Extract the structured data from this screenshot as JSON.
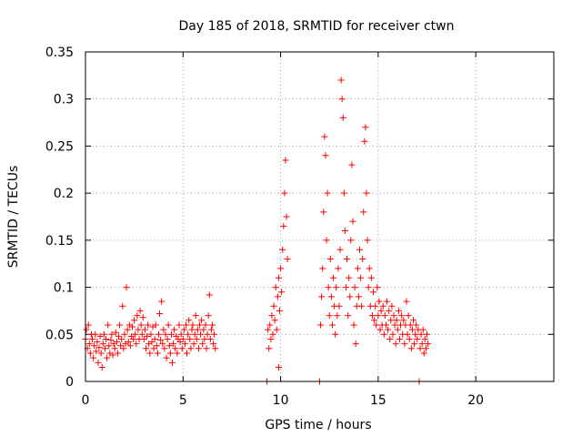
{
  "chart_data": {
    "type": "scatter",
    "title": "Day 185 of 2018, SRMTID for receiver ctwn",
    "xlabel": "GPS time / hours",
    "ylabel": "SRMTID / TECUs",
    "xlim": [
      0,
      24
    ],
    "ylim": [
      0,
      0.35
    ],
    "xticks": [
      0,
      5,
      10,
      15,
      20
    ],
    "xtick_labels": [
      "0",
      "5",
      "10",
      "15",
      "20"
    ],
    "yticks": [
      0,
      0.05,
      0.1,
      0.15,
      0.2,
      0.25,
      0.3,
      0.35
    ],
    "ytick_labels": [
      "0",
      "0.05",
      "0.1",
      "0.15",
      "0.2",
      "0.25",
      "0.3",
      "0.35"
    ],
    "grid": true,
    "marker": "+",
    "color": "#ff0000",
    "series": [
      {
        "name": "SRMTID",
        "points": [
          [
            0.0,
            0.045
          ],
          [
            0.05,
            0.055
          ],
          [
            0.1,
            0.035
          ],
          [
            0.15,
            0.06
          ],
          [
            0.2,
            0.04
          ],
          [
            0.25,
            0.03
          ],
          [
            0.3,
            0.05
          ],
          [
            0.35,
            0.045
          ],
          [
            0.4,
            0.025
          ],
          [
            0.45,
            0.038
          ],
          [
            0.5,
            0.05
          ],
          [
            0.55,
            0.032
          ],
          [
            0.6,
            0.042
          ],
          [
            0.65,
            0.02
          ],
          [
            0.7,
            0.036
          ],
          [
            0.75,
            0.048
          ],
          [
            0.8,
            0.03
          ],
          [
            0.85,
            0.015
          ],
          [
            0.9,
            0.04
          ],
          [
            0.95,
            0.05
          ],
          [
            1.0,
            0.035
          ],
          [
            1.05,
            0.045
          ],
          [
            1.1,
            0.025
          ],
          [
            1.15,
            0.06
          ],
          [
            1.2,
            0.038
          ],
          [
            1.25,
            0.03
          ],
          [
            1.3,
            0.044
          ],
          [
            1.35,
            0.05
          ],
          [
            1.4,
            0.028
          ],
          [
            1.45,
            0.04
          ],
          [
            1.5,
            0.035
          ],
          [
            1.55,
            0.052
          ],
          [
            1.6,
            0.042
          ],
          [
            1.65,
            0.03
          ],
          [
            1.7,
            0.048
          ],
          [
            1.75,
            0.06
          ],
          [
            1.8,
            0.038
          ],
          [
            1.85,
            0.045
          ],
          [
            1.9,
            0.08
          ],
          [
            1.95,
            0.035
          ],
          [
            2.0,
            0.05
          ],
          [
            2.05,
            0.04
          ],
          [
            2.1,
            0.1
          ],
          [
            2.15,
            0.055
          ],
          [
            2.2,
            0.042
          ],
          [
            2.25,
            0.06
          ],
          [
            2.3,
            0.038
          ],
          [
            2.35,
            0.048
          ],
          [
            2.4,
            0.058
          ],
          [
            2.45,
            0.045
          ],
          [
            2.5,
            0.065
          ],
          [
            2.55,
            0.05
          ],
          [
            2.6,
            0.04
          ],
          [
            2.65,
            0.07
          ],
          [
            2.7,
            0.055
          ],
          [
            2.75,
            0.045
          ],
          [
            2.8,
            0.075
          ],
          [
            2.85,
            0.06
          ],
          [
            2.9,
            0.05
          ],
          [
            2.95,
            0.068
          ],
          [
            3.0,
            0.045
          ],
          [
            3.05,
            0.055
          ],
          [
            3.1,
            0.035
          ],
          [
            3.15,
            0.048
          ],
          [
            3.2,
            0.06
          ],
          [
            3.25,
            0.04
          ],
          [
            3.3,
            0.03
          ],
          [
            3.35,
            0.05
          ],
          [
            3.4,
            0.042
          ],
          [
            3.45,
            0.058
          ],
          [
            3.5,
            0.035
          ],
          [
            3.55,
            0.045
          ],
          [
            3.6,
            0.06
          ],
          [
            3.65,
            0.038
          ],
          [
            3.7,
            0.03
          ],
          [
            3.75,
            0.05
          ],
          [
            3.8,
            0.072
          ],
          [
            3.85,
            0.044
          ],
          [
            3.9,
            0.085
          ],
          [
            3.95,
            0.04
          ],
          [
            4.0,
            0.055
          ],
          [
            4.05,
            0.035
          ],
          [
            4.1,
            0.05
          ],
          [
            4.15,
            0.025
          ],
          [
            4.2,
            0.045
          ],
          [
            4.25,
            0.06
          ],
          [
            4.3,
            0.038
          ],
          [
            4.35,
            0.03
          ],
          [
            4.4,
            0.05
          ],
          [
            4.45,
            0.02
          ],
          [
            4.5,
            0.04
          ],
          [
            4.55,
            0.055
          ],
          [
            4.6,
            0.035
          ],
          [
            4.65,
            0.048
          ],
          [
            4.7,
            0.03
          ],
          [
            4.75,
            0.045
          ],
          [
            4.8,
            0.06
          ],
          [
            4.85,
            0.042
          ],
          [
            4.9,
            0.05
          ],
          [
            4.95,
            0.035
          ],
          [
            5.0,
            0.045
          ],
          [
            5.05,
            0.055
          ],
          [
            5.1,
            0.04
          ],
          [
            5.15,
            0.06
          ],
          [
            5.2,
            0.03
          ],
          [
            5.25,
            0.05
          ],
          [
            5.3,
            0.065
          ],
          [
            5.35,
            0.045
          ],
          [
            5.4,
            0.035
          ],
          [
            5.45,
            0.055
          ],
          [
            5.5,
            0.06
          ],
          [
            5.55,
            0.04
          ],
          [
            5.6,
            0.05
          ],
          [
            5.65,
            0.07
          ],
          [
            5.7,
            0.045
          ],
          [
            5.75,
            0.055
          ],
          [
            5.8,
            0.035
          ],
          [
            5.85,
            0.06
          ],
          [
            5.9,
            0.05
          ],
          [
            5.95,
            0.065
          ],
          [
            6.0,
            0.04
          ],
          [
            6.05,
            0.055
          ],
          [
            6.1,
            0.045
          ],
          [
            6.15,
            0.06
          ],
          [
            6.2,
            0.035
          ],
          [
            6.25,
            0.05
          ],
          [
            6.3,
            0.07
          ],
          [
            6.35,
            0.092
          ],
          [
            6.4,
            0.045
          ],
          [
            6.45,
            0.055
          ],
          [
            6.5,
            0.06
          ],
          [
            6.55,
            0.04
          ],
          [
            6.6,
            0.05
          ],
          [
            6.65,
            0.035
          ],
          [
            9.3,
            0.0
          ],
          [
            9.35,
            0.055
          ],
          [
            9.4,
            0.035
          ],
          [
            9.45,
            0.06
          ],
          [
            9.5,
            0.045
          ],
          [
            9.55,
            0.07
          ],
          [
            9.6,
            0.05
          ],
          [
            9.65,
            0.08
          ],
          [
            9.7,
            0.065
          ],
          [
            9.75,
            0.1
          ],
          [
            9.8,
            0.055
          ],
          [
            9.85,
            0.09
          ],
          [
            9.9,
            0.11
          ],
          [
            9.95,
            0.075
          ],
          [
            10.0,
            0.12
          ],
          [
            10.05,
            0.095
          ],
          [
            10.1,
            0.14
          ],
          [
            10.15,
            0.165
          ],
          [
            10.2,
            0.2
          ],
          [
            10.25,
            0.235
          ],
          [
            10.3,
            0.175
          ],
          [
            10.35,
            0.13
          ],
          [
            9.9,
            0.015
          ],
          [
            12.0,
            0.0
          ],
          [
            12.05,
            0.06
          ],
          [
            12.1,
            0.09
          ],
          [
            12.15,
            0.12
          ],
          [
            12.2,
            0.18
          ],
          [
            12.25,
            0.26
          ],
          [
            12.3,
            0.24
          ],
          [
            12.35,
            0.15
          ],
          [
            12.4,
            0.2
          ],
          [
            12.45,
            0.1
          ],
          [
            12.5,
            0.07
          ],
          [
            12.55,
            0.13
          ],
          [
            12.6,
            0.09
          ],
          [
            12.65,
            0.06
          ],
          [
            12.7,
            0.11
          ],
          [
            12.75,
            0.08
          ],
          [
            12.8,
            0.05
          ],
          [
            12.85,
            0.1
          ],
          [
            12.9,
            0.07
          ],
          [
            12.95,
            0.12
          ],
          [
            13.0,
            0.08
          ],
          [
            13.05,
            0.14
          ],
          [
            13.1,
            0.32
          ],
          [
            13.15,
            0.3
          ],
          [
            13.2,
            0.28
          ],
          [
            13.25,
            0.2
          ],
          [
            13.3,
            0.16
          ],
          [
            13.35,
            0.1
          ],
          [
            13.4,
            0.13
          ],
          [
            13.45,
            0.07
          ],
          [
            13.5,
            0.11
          ],
          [
            13.55,
            0.09
          ],
          [
            13.6,
            0.15
          ],
          [
            13.65,
            0.23
          ],
          [
            13.7,
            0.17
          ],
          [
            13.75,
            0.06
          ],
          [
            13.8,
            0.1
          ],
          [
            13.85,
            0.04
          ],
          [
            13.9,
            0.08
          ],
          [
            13.95,
            0.12
          ],
          [
            14.0,
            0.09
          ],
          [
            14.05,
            0.14
          ],
          [
            14.1,
            0.11
          ],
          [
            14.15,
            0.08
          ],
          [
            14.2,
            0.13
          ],
          [
            14.25,
            0.18
          ],
          [
            14.3,
            0.255
          ],
          [
            14.35,
            0.27
          ],
          [
            14.4,
            0.2
          ],
          [
            14.45,
            0.15
          ],
          [
            14.5,
            0.1
          ],
          [
            14.55,
            0.12
          ],
          [
            14.6,
            0.08
          ],
          [
            14.65,
            0.11
          ],
          [
            14.7,
            0.07
          ],
          [
            14.75,
            0.095
          ],
          [
            14.8,
            0.065
          ],
          [
            14.85,
            0.08
          ],
          [
            14.9,
            0.06
          ],
          [
            14.95,
            0.1
          ],
          [
            15.0,
            0.07
          ],
          [
            15.05,
            0.085
          ],
          [
            15.1,
            0.055
          ],
          [
            15.15,
            0.075
          ],
          [
            15.2,
            0.06
          ],
          [
            15.25,
            0.08
          ],
          [
            15.3,
            0.05
          ],
          [
            15.35,
            0.07
          ],
          [
            15.4,
            0.06
          ],
          [
            15.45,
            0.085
          ],
          [
            15.5,
            0.055
          ],
          [
            15.55,
            0.075
          ],
          [
            15.6,
            0.045
          ],
          [
            15.65,
            0.065
          ],
          [
            15.7,
            0.08
          ],
          [
            15.75,
            0.05
          ],
          [
            15.8,
            0.07
          ],
          [
            15.85,
            0.06
          ],
          [
            15.9,
            0.04
          ],
          [
            15.95,
            0.065
          ],
          [
            16.0,
            0.055
          ],
          [
            16.05,
            0.075
          ],
          [
            16.1,
            0.045
          ],
          [
            16.15,
            0.06
          ],
          [
            16.2,
            0.07
          ],
          [
            16.25,
            0.05
          ],
          [
            16.3,
            0.065
          ],
          [
            16.35,
            0.04
          ],
          [
            16.4,
            0.06
          ],
          [
            16.45,
            0.085
          ],
          [
            16.5,
            0.05
          ],
          [
            16.55,
            0.07
          ],
          [
            16.6,
            0.045
          ],
          [
            16.65,
            0.06
          ],
          [
            16.7,
            0.035
          ],
          [
            16.75,
            0.055
          ],
          [
            16.8,
            0.065
          ],
          [
            16.85,
            0.04
          ],
          [
            16.9,
            0.05
          ],
          [
            16.95,
            0.06
          ],
          [
            17.0,
            0.045
          ],
          [
            17.05,
            0.055
          ],
          [
            17.1,
            0.0
          ],
          [
            17.15,
            0.035
          ],
          [
            17.2,
            0.05
          ],
          [
            17.25,
            0.04
          ],
          [
            17.3,
            0.055
          ],
          [
            17.35,
            0.03
          ],
          [
            17.4,
            0.045
          ],
          [
            17.45,
            0.035
          ],
          [
            17.5,
            0.05
          ],
          [
            17.55,
            0.04
          ]
        ]
      }
    ]
  }
}
